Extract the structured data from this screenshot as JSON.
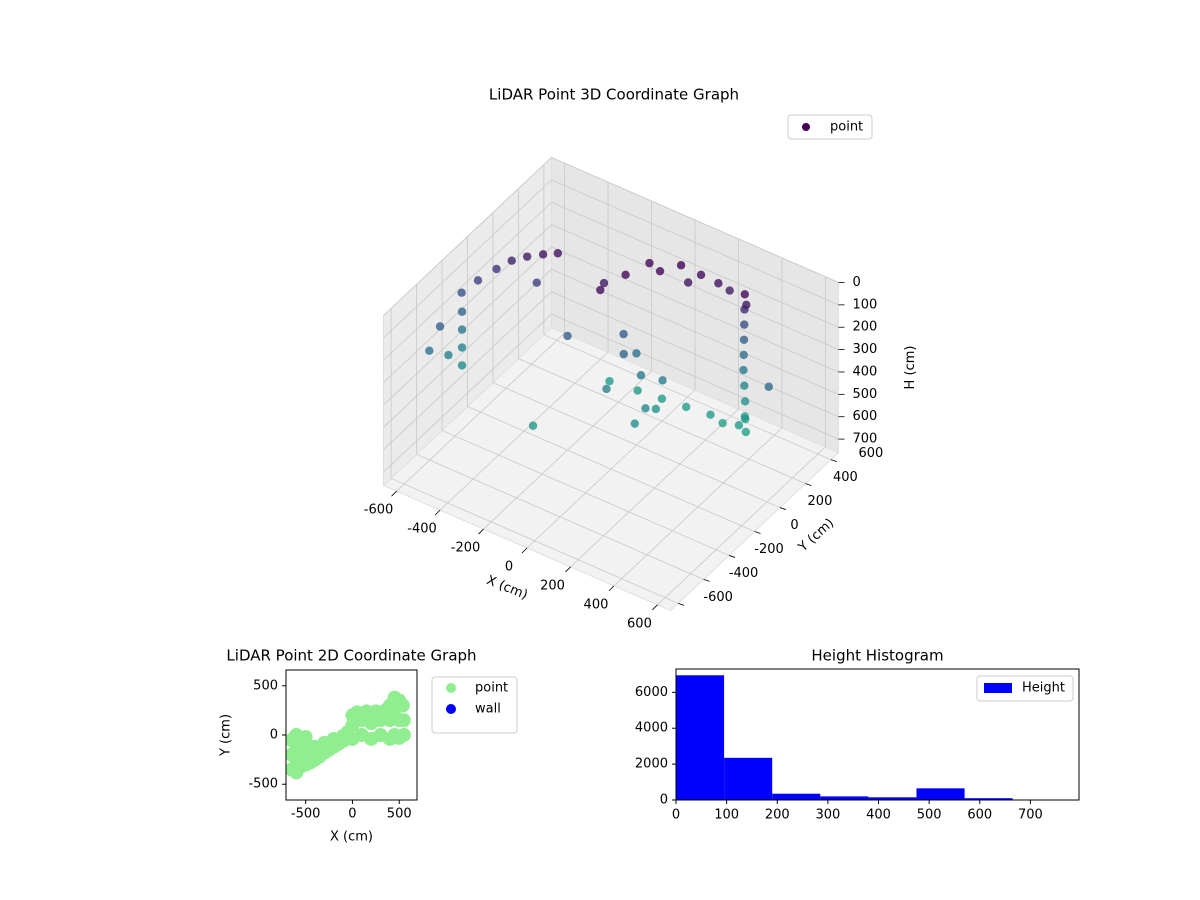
{
  "chart_data": [
    {
      "type": "scatter3d",
      "title": "LiDAR Point 3D Coordinate Graph",
      "xlabel": "X (cm)",
      "ylabel": "Y (cm)",
      "zlabel": "H (cm)",
      "xlim": [
        -660,
        660
      ],
      "ylim": [
        -660,
        660
      ],
      "zlim": [
        760,
        0
      ],
      "xticks": [
        -600,
        -400,
        -200,
        0,
        200,
        400,
        600
      ],
      "yticks": [
        -600,
        -400,
        -200,
        0,
        200,
        400,
        600
      ],
      "zticks": [
        0,
        100,
        200,
        300,
        400,
        500,
        600,
        700
      ],
      "colormap": [
        "#440154",
        "#3b528b",
        "#2a788e",
        "#21918c",
        "#22a884"
      ],
      "legend": "upper right",
      "grid": true,
      "series": [
        {
          "name": "point",
          "color": "#440154",
          "x": [
            390,
            380,
            370,
            360,
            350,
            340,
            335,
            330,
            320,
            345,
            360,
            400,
            -14,
            -86,
            255,
            100,
            180,
            -50,
            50,
            -120,
            300,
            150,
            -500,
            -450,
            -400,
            -550,
            -600,
            -640,
            -350,
            -650,
            -650,
            -650,
            -650,
            0,
            50,
            -50,
            100,
            0,
            80,
            -30,
            120,
            60,
            -216,
            -100,
            0,
            100,
            200,
            323,
            250,
            -660,
            -660,
            -640,
            -300,
            -400,
            550,
            -200
          ],
          "y": [
            385,
            400,
            415,
            430,
            445,
            460,
            475,
            490,
            505,
            470,
            440,
            380,
            326,
            63,
            408,
            380,
            400,
            200,
            300,
            150,
            420,
            350,
            74,
            110,
            150,
            40,
            -20,
            -80,
            180,
            -60,
            -60,
            -60,
            -60,
            100,
            150,
            50,
            100,
            200,
            50,
            150,
            200,
            250,
            357,
            380,
            400,
            420,
            440,
            453,
            450,
            -300,
            -150,
            -250,
            -100,
            100,
            300,
            0
          ],
          "z": [
            20,
            100,
            180,
            260,
            340,
            420,
            500,
            580,
            660,
            700,
            620,
            60,
            20,
            30,
            40,
            10,
            30,
            20,
            15,
            60,
            60,
            50,
            80,
            60,
            50,
            120,
            160,
            200,
            40,
            300,
            380,
            460,
            540,
            300,
            400,
            450,
            500,
            350,
            550,
            250,
            420,
            600,
            650,
            655,
            660,
            665,
            668,
            670,
            690,
            350,
            450,
            260,
            640,
            150,
            320,
            250
          ]
        }
      ]
    },
    {
      "type": "scatter",
      "title": "LiDAR Point 2D Coordinate Graph",
      "xlabel": "X (cm)",
      "ylabel": "Y (cm)",
      "xlim": [
        -710,
        690
      ],
      "ylim": [
        -660,
        660
      ],
      "xticks": [
        -500,
        0,
        500
      ],
      "yticks": [
        -500,
        0,
        500
      ],
      "legend": "outside upper left",
      "series": [
        {
          "name": "point",
          "color": "#90ee90",
          "x": [
            -650,
            -650,
            -650,
            -600,
            -600,
            -600,
            -600,
            -550,
            -550,
            -550,
            -500,
            -500,
            -500,
            -450,
            -400,
            -350,
            -300,
            -250,
            -200,
            -150,
            -100,
            -400,
            -300,
            -200,
            -100,
            -50,
            0,
            0,
            0,
            50,
            100,
            100,
            150,
            200,
            200,
            250,
            300,
            300,
            350,
            400,
            400,
            400,
            450,
            450,
            450,
            500,
            500,
            500,
            550,
            550,
            540
          ],
          "y": [
            -350,
            -200,
            -50,
            -380,
            -250,
            -100,
            0,
            -320,
            -180,
            -40,
            -300,
            -150,
            -20,
            -280,
            -250,
            -220,
            -180,
            -150,
            -120,
            -90,
            -60,
            -120,
            -80,
            -40,
            -10,
            30,
            -40,
            100,
            200,
            230,
            0,
            150,
            240,
            -40,
            120,
            240,
            0,
            150,
            250,
            -40,
            150,
            300,
            0,
            200,
            380,
            -30,
            150,
            350,
            0,
            150,
            300
          ]
        },
        {
          "name": "wall",
          "color": "#0000ff",
          "x": [],
          "y": []
        }
      ]
    },
    {
      "type": "histogram",
      "title": "Height Histogram",
      "bins": [
        0,
        95,
        190,
        285,
        380,
        475,
        570,
        665,
        760
      ],
      "series": [
        {
          "name": "Height",
          "color": "#0000ff",
          "values": [
            6950,
            2350,
            350,
            200,
            150,
            650,
            100,
            20
          ]
        }
      ],
      "xlim": [
        0,
        796
      ],
      "ylim": [
        0,
        7300
      ],
      "xticks": [
        0,
        100,
        200,
        300,
        400,
        500,
        600,
        700
      ],
      "yticks": [
        0,
        2000,
        4000,
        6000
      ],
      "legend": "upper right"
    }
  ]
}
